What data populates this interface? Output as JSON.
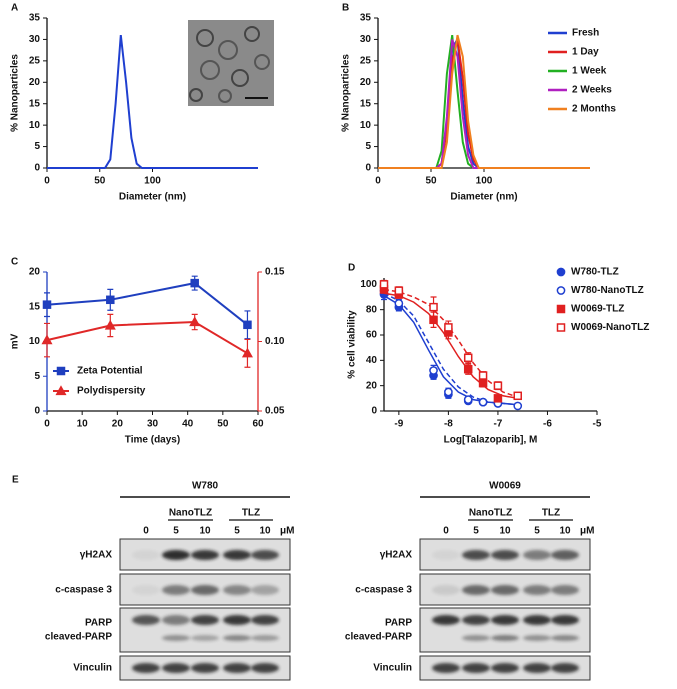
{
  "chart_data": [
    {
      "type": "line",
      "label": "A",
      "xlabel": "Diameter (nm)",
      "ylabel": "% Nanoparticles",
      "x": [
        0,
        55,
        60,
        65,
        70,
        75,
        80,
        85,
        90,
        95,
        200
      ],
      "values": [
        0,
        0,
        2,
        15,
        31,
        20,
        7,
        1,
        0,
        0,
        0
      ],
      "color": "#1f3fd0",
      "xlim": [
        0,
        200
      ],
      "xticks": [
        0,
        50,
        100
      ],
      "ylim": [
        0,
        35
      ],
      "yticks": [
        0,
        5,
        10,
        15,
        20,
        25,
        30,
        35
      ]
    },
    {
      "type": "line",
      "label": "B",
      "xlabel": "Diameter (nm)",
      "ylabel": "% Nanoparticles",
      "legend": "upper right",
      "x": [
        0,
        55,
        60,
        65,
        70,
        75,
        80,
        85,
        90,
        95,
        200
      ],
      "series": [
        {
          "name": "Fresh",
          "color": "#1f3fd0",
          "values": [
            0,
            0,
            1,
            10,
            28,
            30,
            16,
            5,
            1,
            0,
            0
          ]
        },
        {
          "name": "1 Day",
          "color": "#e02020",
          "values": [
            0,
            0,
            1,
            9,
            25,
            30,
            21,
            8,
            2,
            0,
            0
          ]
        },
        {
          "name": "1 Week",
          "color": "#22b022",
          "values": [
            0,
            0,
            4,
            22,
            31,
            18,
            6,
            1,
            0,
            0,
            0
          ]
        },
        {
          "name": "2 Weeks",
          "color": "#b020c0",
          "values": [
            0,
            0,
            1,
            12,
            30,
            26,
            12,
            3,
            0,
            0,
            0
          ]
        },
        {
          "name": "2 Months",
          "color": "#f08020",
          "values": [
            0,
            0,
            0,
            6,
            22,
            31,
            26,
            11,
            3,
            0,
            0
          ]
        }
      ],
      "xlim": [
        0,
        200
      ],
      "xticks": [
        0,
        50,
        100
      ],
      "ylim": [
        0,
        35
      ],
      "yticks": [
        0,
        5,
        10,
        15,
        20,
        25,
        30,
        35
      ]
    },
    {
      "type": "line",
      "label": "C",
      "xlabel": "Time (days)",
      "ylabel": "mV",
      "legend": "lower left",
      "x": [
        0,
        18,
        42,
        57
      ],
      "series": [
        {
          "name": "Zeta Potential",
          "color": "#1f3fbf",
          "marker": "square",
          "filled": true,
          "values": [
            15.3,
            16,
            18.4,
            12.4
          ],
          "errors": [
            1.7,
            1.5,
            1,
            2
          ]
        },
        {
          "name": "Polydispersity",
          "color": "#e02828",
          "marker": "triangle",
          "filled": true,
          "axis": "y2",
          "values": [
            0.101,
            0.1115,
            0.114,
            0.0915
          ],
          "errors": [
            0.012,
            0.008,
            0.0055,
            0.01
          ]
        }
      ],
      "xlim": [
        0,
        60
      ],
      "xticks": [
        0,
        10,
        20,
        30,
        40,
        50,
        60
      ],
      "ylim": [
        0,
        20
      ],
      "yticks": [
        0,
        5,
        10,
        15,
        20
      ],
      "y2lim": [
        0.05,
        0.15
      ],
      "y2ticks": [
        0.05,
        {
          "value": 0.1,
          "label": "0.10"
        },
        0.15
      ]
    },
    {
      "type": "dose-response",
      "label": "D",
      "xlabel": "Log[Talazoparib], M",
      "ylabel": "% cell viability",
      "legend": "right",
      "x": [
        -9.3,
        -9,
        -8.3,
        -8,
        -7.6,
        -7.3,
        -7,
        -6.6
      ],
      "fit_x": [
        -9.3,
        -9,
        -8.7,
        -8.4,
        -8.1,
        -7.8,
        -7.5,
        -7.2,
        -6.9,
        -6.6
      ],
      "series": [
        {
          "name": "W780-TLZ",
          "color": "#1f3fd0",
          "marker": "circle",
          "filled": true,
          "dashed": false,
          "values": [
            92,
            82,
            28,
            13,
            8,
            7,
            6,
            null
          ],
          "errors": [
            4,
            3,
            3,
            3,
            2,
            2,
            2,
            null
          ],
          "fit_values": [
            91,
            84,
            70,
            48,
            27,
            15,
            9,
            7,
            6,
            5
          ]
        },
        {
          "name": "W780-NanoTLZ",
          "color": "#1f3fd0",
          "marker": "circle",
          "filled": false,
          "dashed": true,
          "values": [
            95,
            85,
            32,
            15,
            9,
            7,
            6,
            4
          ],
          "errors": [
            4,
            3,
            4,
            3,
            2,
            2,
            2,
            2
          ],
          "fit_values": [
            93,
            87,
            75,
            54,
            33,
            19,
            11,
            7,
            6,
            5
          ]
        },
        {
          "name": "W0069-TLZ",
          "color": "#e02020",
          "marker": "square",
          "filled": true,
          "dashed": false,
          "values": [
            96,
            92,
            72,
            62,
            33,
            22,
            10,
            null
          ],
          "errors": [
            3,
            3,
            6,
            5,
            4,
            3,
            2,
            null
          ],
          "fit_values": [
            93,
            91,
            86,
            77,
            62,
            43,
            27,
            17,
            12,
            10
          ]
        },
        {
          "name": "W0069-NanoTLZ",
          "color": "#e02020",
          "marker": "square",
          "filled": false,
          "dashed": true,
          "values": [
            100,
            95,
            82,
            66,
            42,
            28,
            20,
            12
          ],
          "errors": [
            3,
            3,
            8,
            5,
            4,
            3,
            3,
            2
          ],
          "fit_values": [
            96,
            94,
            90,
            84,
            72,
            56,
            38,
            24,
            15,
            11
          ]
        }
      ],
      "xlim": [
        -9.3,
        -5
      ],
      "xticks": [
        -9,
        -8,
        -7,
        -6,
        -5
      ],
      "ylim": [
        0,
        105
      ],
      "yticks": [
        0,
        20,
        40,
        60,
        80,
        100
      ]
    }
  ],
  "blot_panel": {
    "label": "E",
    "unit": "μM",
    "blots": [
      {
        "cell_line": "W780",
        "control": "0",
        "groups": [
          {
            "name": "NanoTLZ",
            "doses": [
              "5",
              "10"
            ]
          },
          {
            "name": "TLZ",
            "doses": [
              "5",
              "10"
            ]
          }
        ],
        "rows": [
          "γH2AX",
          "c-caspase 3",
          "PARP",
          "cleaved-PARP",
          "Vinculin"
        ]
      },
      {
        "cell_line": "W0069",
        "control": "0",
        "groups": [
          {
            "name": "NanoTLZ",
            "doses": [
              "5",
              "10"
            ]
          },
          {
            "name": "TLZ",
            "doses": [
              "5",
              "10"
            ]
          }
        ],
        "rows": [
          "γH2AX",
          "c-caspase 3",
          "PARP",
          "cleaved-PARP",
          "Vinculin"
        ]
      }
    ]
  }
}
